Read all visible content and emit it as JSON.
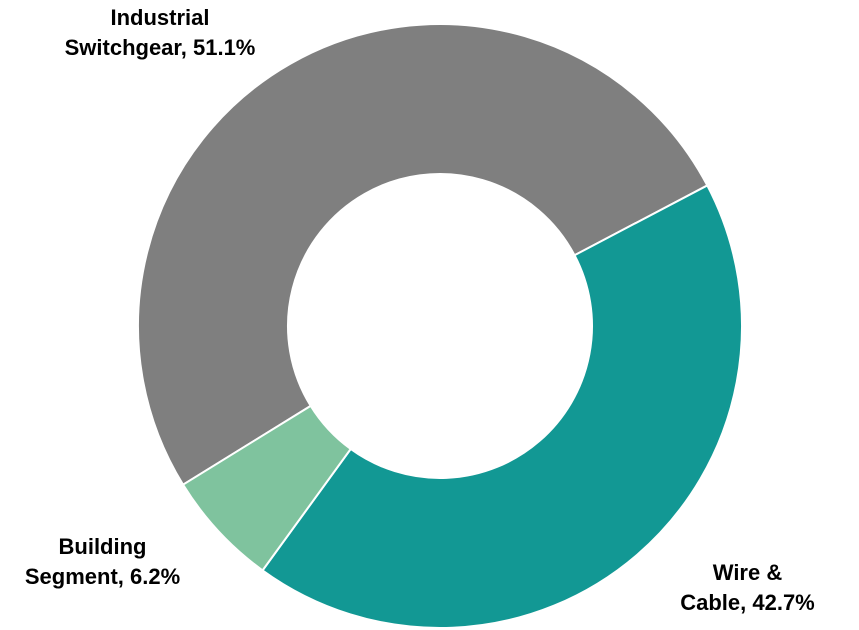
{
  "chart_data": {
    "type": "pie",
    "style": "donut",
    "title": "",
    "slices": [
      {
        "name": "Industrial Switchgear",
        "value": 51.1,
        "label_line1": "Industrial",
        "label_line2": "Switchgear, 51.1%",
        "color": "#7f7f7f"
      },
      {
        "name": "Wire & Cable",
        "value": 42.7,
        "label_line1": "Wire &",
        "label_line2": "Cable, 42.7%",
        "color": "#129894"
      },
      {
        "name": "Building Segment",
        "value": 6.2,
        "label_line1": "Building",
        "label_line2": "Segment, 6.2%",
        "color": "#7fc39e"
      }
    ],
    "legend": "none"
  }
}
